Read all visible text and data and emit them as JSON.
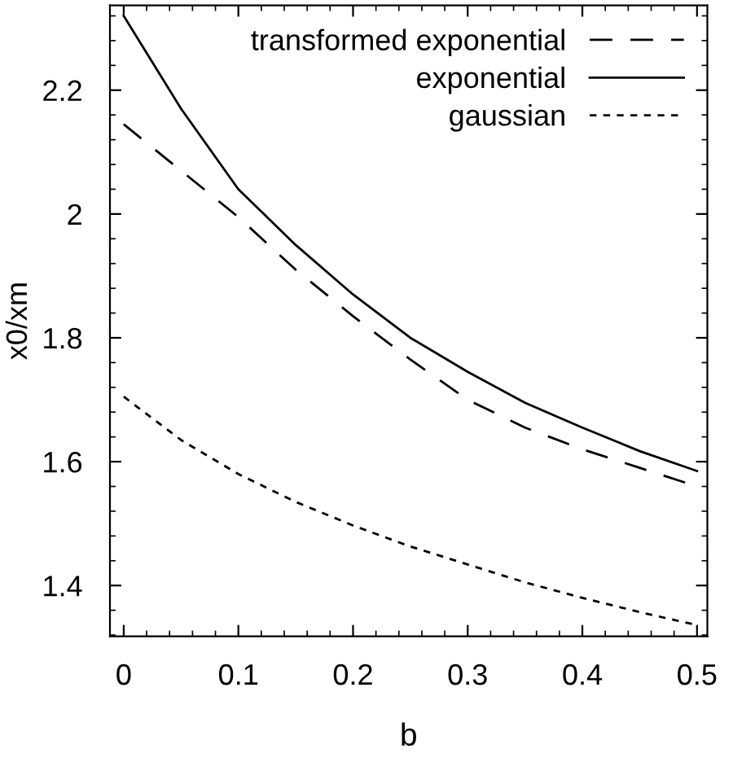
{
  "chart_data": {
    "type": "line",
    "xlabel": "b",
    "ylabel": "x0/xm",
    "x": [
      0,
      0.05,
      0.1,
      0.15,
      0.2,
      0.25,
      0.3,
      0.35,
      0.4,
      0.45,
      0.5
    ],
    "series": [
      {
        "name": "transformed exponential",
        "color": "#000000",
        "line_style": "dashed",
        "values": [
          2.145,
          2.07,
          1.995,
          1.91,
          1.835,
          1.765,
          1.7,
          1.655,
          1.62,
          1.59,
          1.56
        ]
      },
      {
        "name": "exponential",
        "color": "#000000",
        "line_style": "solid",
        "values": [
          2.32,
          2.17,
          2.04,
          1.95,
          1.87,
          1.8,
          1.745,
          1.695,
          1.655,
          1.617,
          1.585
        ]
      },
      {
        "name": "gaussian",
        "color": "#000000",
        "line_style": "dotted",
        "values": [
          1.705,
          1.635,
          1.58,
          1.535,
          1.497,
          1.463,
          1.434,
          1.405,
          1.38,
          1.357,
          1.336
        ]
      }
    ],
    "xlim": [
      -0.012,
      0.509
    ],
    "ylim": [
      1.318,
      2.337
    ],
    "xticks": [
      0,
      0.1,
      0.2,
      0.3,
      0.4,
      0.5
    ],
    "yticks": [
      1.4,
      1.6,
      1.8,
      2,
      2.2
    ],
    "grid": false,
    "legend": "top right"
  }
}
